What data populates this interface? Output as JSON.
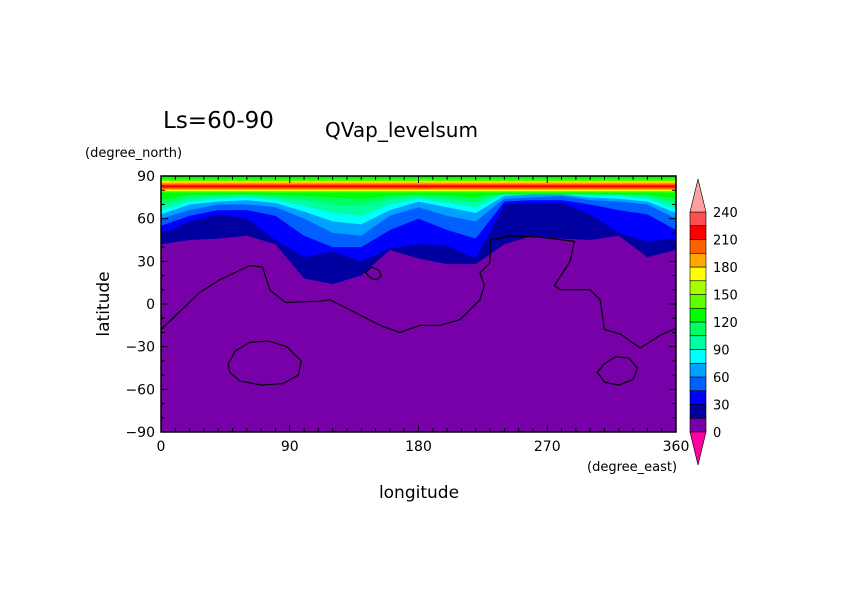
{
  "chart_data": {
    "type": "heatmap",
    "title": "QVap_levelsum",
    "subtitle": "Ls=60-90",
    "xlabel": "longitude",
    "ylabel": "latitude",
    "xunit": "(degree_east)",
    "yunit": "(degree_north)",
    "xlim": [
      0,
      360
    ],
    "ylim": [
      -90,
      90
    ],
    "xticks": [
      0,
      90,
      180,
      270,
      360
    ],
    "yticks": [
      -90,
      -60,
      -30,
      0,
      30,
      60,
      90
    ],
    "xtick_labels": [
      "0",
      "90",
      "180",
      "270",
      "360"
    ],
    "ytick_labels": [
      "−90",
      "−60",
      "−30",
      "0",
      "30",
      "60",
      "90"
    ],
    "colorbar": {
      "levels": [
        0,
        15,
        30,
        45,
        60,
        75,
        90,
        105,
        120,
        135,
        150,
        165,
        180,
        195,
        210,
        225,
        240
      ],
      "labels": [
        "0",
        "30",
        "60",
        "90",
        "120",
        "150",
        "180",
        "210",
        "240"
      ],
      "under_color": "#ff00a0",
      "over_color": "#ffa0a0",
      "colors": [
        "#7800a8",
        "#0000a0",
        "#0000ff",
        "#0060ff",
        "#00a0ff",
        "#00ffff",
        "#00ffa0",
        "#00ff60",
        "#00ff00",
        "#60ff00",
        "#a8ff00",
        "#ffff00",
        "#ffa800",
        "#ff6000",
        "#ff0000",
        "#ff5050"
      ]
    },
    "contour_boundaries": {
      "longitudes": [
        0,
        20,
        40,
        60,
        80,
        100,
        120,
        140,
        160,
        180,
        200,
        220,
        240,
        260,
        280,
        300,
        320,
        340,
        360
      ],
      "levels": [
        {
          "value": 15,
          "lat": [
            42,
            45,
            46,
            48,
            42,
            18,
            14,
            20,
            38,
            32,
            28,
            28,
            42,
            48,
            46,
            45,
            48,
            33,
            38
          ]
        },
        {
          "value": 30,
          "lat": [
            49,
            58,
            63,
            60,
            45,
            33,
            37,
            30,
            39,
            42,
            41,
            32,
            70,
            71,
            71,
            63,
            50,
            44,
            46
          ]
        },
        {
          "value": 45,
          "lat": [
            55,
            62,
            66,
            66,
            62,
            48,
            40,
            40,
            52,
            60,
            52,
            46,
            72,
            73,
            73,
            70,
            66,
            63,
            52
          ]
        },
        {
          "value": 60,
          "lat": [
            60,
            66,
            70,
            70,
            68,
            60,
            50,
            48,
            62,
            68,
            62,
            58,
            74,
            75,
            76,
            73,
            72,
            70,
            60
          ]
        },
        {
          "value": 75,
          "lat": [
            63,
            70,
            72,
            73,
            71,
            65,
            58,
            56,
            66,
            72,
            68,
            64,
            76,
            77,
            77,
            75,
            74,
            72,
            64
          ]
        },
        {
          "value": 90,
          "lat": [
            66,
            72,
            74,
            75,
            73,
            69,
            64,
            62,
            70,
            74,
            71,
            68,
            77,
            78,
            78,
            77,
            76,
            74,
            67
          ]
        },
        {
          "value": 105,
          "lat": [
            70,
            75,
            76,
            77,
            75,
            73,
            70,
            69,
            74,
            76,
            74,
            72,
            78,
            79,
            79,
            78,
            77,
            76,
            71
          ]
        },
        {
          "value": 120,
          "lat": [
            73,
            77,
            77,
            78,
            77,
            76,
            75,
            74,
            76,
            77,
            76,
            75,
            79,
            79.5,
            79.5,
            79,
            78,
            77,
            74
          ]
        }
      ],
      "polar_band": [
        {
          "lat": [
            77,
            90
          ],
          "value": 120
        },
        {
          "lat": [
            78.5,
            88
          ],
          "value": 135
        },
        {
          "lat": [
            79.5,
            86.5
          ],
          "value": 165
        },
        {
          "lat": [
            80.3,
            85.5
          ],
          "value": 180
        },
        {
          "lat": [
            81,
            84.5
          ],
          "value": 195
        },
        {
          "lat": [
            81.8,
            83.5
          ],
          "value": 210
        }
      ]
    },
    "contour_lines": [
      {
        "closed": false,
        "points": [
          [
            0,
            -18
          ],
          [
            27,
            8
          ],
          [
            41,
            17
          ],
          [
            62,
            27
          ],
          [
            71,
            26
          ],
          [
            76,
            10
          ],
          [
            87,
            1
          ],
          [
            111,
            2
          ],
          [
            118,
            3
          ],
          [
            132,
            -4
          ],
          [
            153,
            -15
          ],
          [
            167,
            -20
          ],
          [
            181,
            -15
          ],
          [
            195,
            -15
          ],
          [
            209,
            -11
          ],
          [
            223,
            3
          ],
          [
            226,
            13
          ],
          [
            223,
            22
          ],
          [
            230,
            29
          ],
          [
            230,
            45
          ],
          [
            244,
            48
          ],
          [
            265,
            47
          ],
          [
            289,
            44
          ],
          [
            286,
            30
          ],
          [
            275,
            13
          ],
          [
            279,
            10
          ],
          [
            300,
            10
          ],
          [
            307,
            3
          ],
          [
            310,
            -18
          ],
          [
            321,
            -21
          ],
          [
            335,
            -31
          ],
          [
            349,
            -22
          ],
          [
            360,
            -17
          ]
        ]
      },
      {
        "closed": true,
        "points": [
          [
            47,
            -42
          ],
          [
            52,
            -33
          ],
          [
            62,
            -27
          ],
          [
            75,
            -26
          ],
          [
            88,
            -30
          ],
          [
            98,
            -40
          ],
          [
            96,
            -50
          ],
          [
            85,
            -56
          ],
          [
            70,
            -57
          ],
          [
            55,
            -54
          ],
          [
            48,
            -48
          ]
        ]
      },
      {
        "closed": true,
        "points": [
          [
            305,
            -48
          ],
          [
            310,
            -42
          ],
          [
            318,
            -37
          ],
          [
            327,
            -38
          ],
          [
            333,
            -45
          ],
          [
            330,
            -53
          ],
          [
            320,
            -57
          ],
          [
            310,
            -55
          ]
        ]
      },
      {
        "closed": true,
        "points": [
          [
            143,
            22
          ],
          [
            147,
            26
          ],
          [
            152,
            24
          ],
          [
            154,
            20
          ],
          [
            151,
            17
          ],
          [
            147,
            18
          ]
        ]
      }
    ]
  }
}
